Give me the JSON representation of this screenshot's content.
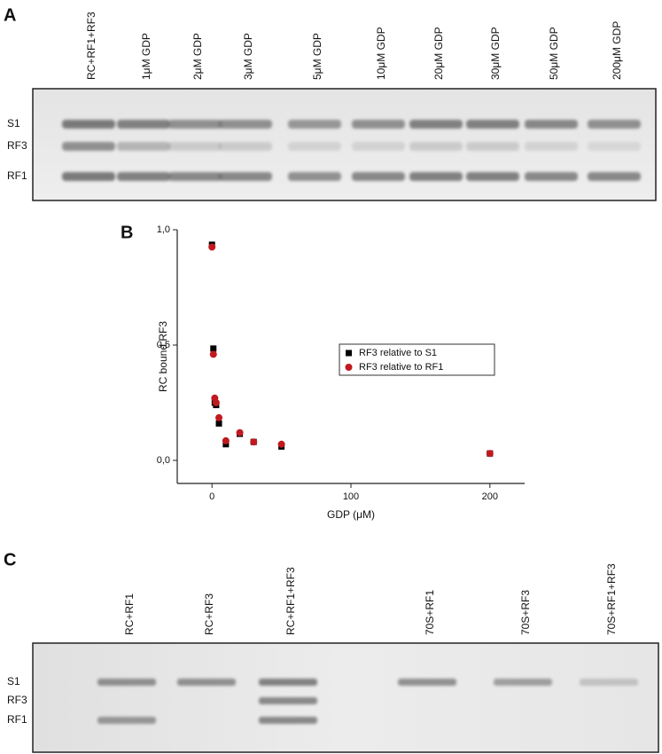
{
  "panel_a": {
    "label": "A",
    "lanes": [
      "RC+RF1+RF3",
      "1μM GDP",
      "2μM GDP",
      "3μM GDP",
      "5μM GDP",
      "10μM GDP",
      "20μM GDP",
      "30μM GDP",
      "50μM GDP",
      "200μM GDP"
    ],
    "rows": [
      "S1",
      "RF3",
      "RF1"
    ]
  },
  "chart_data": {
    "type": "scatter",
    "panel_label": "B",
    "x_label": "GDP (μM)",
    "y_label": "RC bound RF3",
    "xlim": [
      -25,
      225
    ],
    "ylim": [
      -0.1,
      1.0
    ],
    "xticks": [
      0,
      100,
      200
    ],
    "yticks": [
      {
        "value": 0,
        "label": "0,0"
      },
      {
        "value": 0.5,
        "label": "0,5"
      },
      {
        "value": 1.0,
        "label": "1,0"
      }
    ],
    "legend_position": "right",
    "series": [
      {
        "name": "RF3 relative to S1",
        "color": "#000000",
        "marker": "square",
        "x": [
          0,
          1,
          2,
          3,
          5,
          10,
          20,
          30,
          50,
          200
        ],
        "values": [
          0.935,
          0.485,
          0.25,
          0.24,
          0.16,
          0.07,
          0.115,
          0.08,
          0.06,
          0.03
        ]
      },
      {
        "name": "RF3 relative to RF1",
        "color": "#c0191f",
        "marker": "circle",
        "x": [
          0,
          1,
          2,
          3,
          5,
          10,
          20,
          30,
          50,
          200
        ],
        "values": [
          0.925,
          0.46,
          0.27,
          0.25,
          0.185,
          0.085,
          0.12,
          0.08,
          0.07,
          0.03
        ]
      }
    ]
  },
  "panel_c": {
    "label": "C",
    "lanes": [
      "RC+RF1",
      "RC+RF3",
      "RC+RF1+RF3",
      "70S+RF1",
      "70S+RF3",
      "70S+RF1+RF3"
    ],
    "rows": [
      "S1",
      "RF3",
      "RF1"
    ]
  }
}
